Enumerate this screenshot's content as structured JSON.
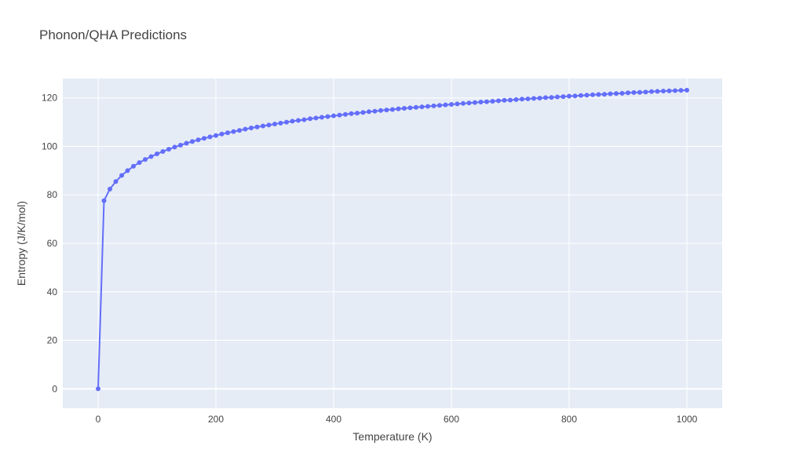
{
  "chart_data": {
    "type": "line",
    "title": "Phonon/QHA Predictions",
    "xlabel": "Temperature (K)",
    "ylabel": "Entropy (J/K/mol)",
    "xlim": [
      -60,
      1060
    ],
    "ylim": [
      -8,
      128
    ],
    "x_ticks": [
      0,
      200,
      400,
      600,
      800,
      1000
    ],
    "y_ticks": [
      0,
      20,
      40,
      60,
      80,
      100,
      120
    ],
    "grid": true,
    "colors": {
      "plot_bg": "#e5ecf6",
      "grid": "#ffffff",
      "series": "#636efa",
      "text": "#444444"
    },
    "series": [
      {
        "mode": "lines+markers",
        "x": [
          0,
          10,
          20,
          30,
          40,
          50,
          60,
          70,
          80,
          90,
          100,
          110,
          120,
          130,
          140,
          150,
          160,
          170,
          180,
          190,
          200,
          210,
          220,
          230,
          240,
          250,
          260,
          270,
          280,
          290,
          300,
          310,
          320,
          330,
          340,
          350,
          360,
          370,
          380,
          390,
          400,
          410,
          420,
          430,
          440,
          450,
          460,
          470,
          480,
          490,
          500,
          510,
          520,
          530,
          540,
          550,
          560,
          570,
          580,
          590,
          600,
          610,
          620,
          630,
          640,
          650,
          660,
          670,
          680,
          690,
          700,
          710,
          720,
          730,
          740,
          750,
          760,
          770,
          780,
          790,
          800,
          810,
          820,
          830,
          840,
          850,
          860,
          870,
          880,
          890,
          900,
          910,
          920,
          930,
          940,
          950,
          960,
          970,
          980,
          990,
          1000
        ],
        "y": [
          0,
          77.6,
          82.4,
          85.5,
          88.0,
          90.0,
          91.8,
          93.3,
          94.6,
          95.8,
          96.9,
          97.9,
          98.8,
          99.7,
          100.5,
          101.3,
          102.0,
          102.7,
          103.3,
          103.9,
          104.5,
          105.1,
          105.6,
          106.1,
          106.6,
          107.1,
          107.6,
          108.0,
          108.4,
          108.8,
          109.2,
          109.6,
          110.0,
          110.4,
          110.7,
          111.0,
          111.4,
          111.7,
          112.0,
          112.3,
          112.6,
          112.9,
          113.2,
          113.5,
          113.7,
          114.0,
          114.3,
          114.5,
          114.8,
          115.0,
          115.2,
          115.5,
          115.7,
          115.9,
          116.1,
          116.3,
          116.5,
          116.7,
          116.9,
          117.1,
          117.3,
          117.5,
          117.7,
          117.9,
          118.1,
          118.3,
          118.4,
          118.6,
          118.8,
          119.0,
          119.1,
          119.3,
          119.5,
          119.6,
          119.8,
          119.9,
          120.1,
          120.2,
          120.4,
          120.5,
          120.7,
          120.8,
          121.0,
          121.1,
          121.3,
          121.4,
          121.5,
          121.7,
          121.8,
          121.9,
          122.1,
          122.2,
          122.3,
          122.4,
          122.6,
          122.7,
          122.8,
          122.9,
          123.0,
          123.1,
          123.2
        ]
      }
    ]
  }
}
